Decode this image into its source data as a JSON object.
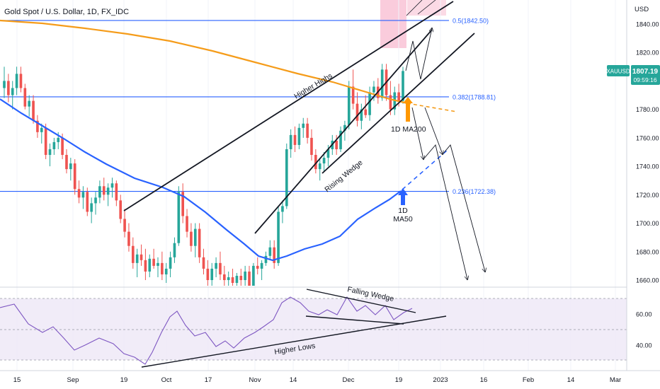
{
  "header": {
    "title": "Gold Spot / U.S. Dollar, 1D, FX_IDC"
  },
  "price_axis": {
    "unit": "USD",
    "ticks": [
      "1840.00",
      "1820.00",
      "1800.00",
      "1780.00",
      "1760.00",
      "1740.00",
      "1720.00",
      "1700.00",
      "1680.00",
      "1660.00"
    ]
  },
  "rsi_axis": {
    "ticks": [
      "60.00",
      "40.00"
    ]
  },
  "time_axis": {
    "ticks": [
      "15",
      "Sep",
      "19",
      "Oct",
      "17",
      "Nov",
      "14",
      "Dec",
      "19",
      "2023",
      "16",
      "Feb",
      "14",
      "Mar"
    ]
  },
  "price_badge": {
    "symbol": "XAUUSD",
    "price": "1807.19",
    "countdown": "09:59:16"
  },
  "fib_levels": [
    {
      "label": "0.5(1842.50)",
      "value": 1842.5
    },
    {
      "label": "0.382(1788.81)",
      "value": 1788.81
    },
    {
      "label": "0.236(1722.38)",
      "value": 1722.38
    }
  ],
  "annotations": {
    "higher_highs": "Higher Highs",
    "rising_wedge": "Rising Wedge",
    "ma200_line1": "1D MA200",
    "ma50_line1": "1D",
    "ma50_line2": "MA50",
    "falling_wedge": "Falling Wedge",
    "higher_lows": "Higher Lows"
  },
  "colors": {
    "up": "#26a69a",
    "down": "#ef5350",
    "ma200": "#f59c1a",
    "ma50": "#2962ff",
    "fib": "#2962ff",
    "rsi": "#7e57c2",
    "badge": "#26a69a",
    "ma200_arrow": "#ff9800",
    "ma50_arrow": "#2962ff"
  },
  "chart_data": {
    "type": "candlestick",
    "candles_ohlc_approx": [
      [
        1795,
        1810,
        1788,
        1800
      ],
      [
        1800,
        1805,
        1785,
        1790
      ],
      [
        1790,
        1800,
        1780,
        1795
      ],
      [
        1795,
        1810,
        1790,
        1805
      ],
      [
        1805,
        1810,
        1792,
        1795
      ],
      [
        1795,
        1798,
        1780,
        1782
      ],
      [
        1782,
        1790,
        1775,
        1786
      ],
      [
        1786,
        1790,
        1770,
        1772
      ],
      [
        1772,
        1776,
        1760,
        1764
      ],
      [
        1764,
        1770,
        1756,
        1767
      ],
      [
        1767,
        1770,
        1745,
        1748
      ],
      [
        1748,
        1756,
        1740,
        1752
      ],
      [
        1752,
        1760,
        1748,
        1757
      ],
      [
        1757,
        1764,
        1752,
        1760
      ],
      [
        1760,
        1763,
        1745,
        1748
      ],
      [
        1748,
        1752,
        1735,
        1738
      ],
      [
        1738,
        1746,
        1730,
        1742
      ],
      [
        1742,
        1745,
        1720,
        1724
      ],
      [
        1724,
        1730,
        1714,
        1718
      ],
      [
        1718,
        1726,
        1710,
        1722
      ],
      [
        1722,
        1725,
        1705,
        1708
      ],
      [
        1708,
        1718,
        1700,
        1714
      ],
      [
        1714,
        1722,
        1706,
        1718
      ],
      [
        1718,
        1730,
        1714,
        1726
      ],
      [
        1726,
        1732,
        1716,
        1720
      ],
      [
        1720,
        1728,
        1712,
        1725
      ],
      [
        1725,
        1732,
        1718,
        1728
      ],
      [
        1728,
        1730,
        1712,
        1716
      ],
      [
        1716,
        1720,
        1700,
        1703
      ],
      [
        1703,
        1710,
        1690,
        1694
      ],
      [
        1694,
        1700,
        1680,
        1684
      ],
      [
        1684,
        1690,
        1668,
        1672
      ],
      [
        1672,
        1682,
        1662,
        1678
      ],
      [
        1678,
        1685,
        1670,
        1674
      ],
      [
        1674,
        1682,
        1660,
        1666
      ],
      [
        1666,
        1678,
        1662,
        1675
      ],
      [
        1675,
        1682,
        1668,
        1670
      ],
      [
        1670,
        1676,
        1662,
        1672
      ],
      [
        1672,
        1680,
        1660,
        1664
      ],
      [
        1664,
        1672,
        1658,
        1668
      ],
      [
        1668,
        1680,
        1662,
        1676
      ],
      [
        1676,
        1690,
        1672,
        1686
      ],
      [
        1686,
        1726,
        1684,
        1722
      ],
      [
        1722,
        1728,
        1700,
        1705
      ],
      [
        1705,
        1710,
        1690,
        1694
      ],
      [
        1694,
        1700,
        1680,
        1684
      ],
      [
        1684,
        1700,
        1676,
        1696
      ],
      [
        1696,
        1700,
        1672,
        1676
      ],
      [
        1676,
        1682,
        1664,
        1668
      ],
      [
        1668,
        1674,
        1656,
        1660
      ],
      [
        1660,
        1672,
        1656,
        1668
      ],
      [
        1668,
        1676,
        1662,
        1672
      ],
      [
        1672,
        1680,
        1660,
        1664
      ],
      [
        1664,
        1670,
        1656,
        1660
      ],
      [
        1660,
        1666,
        1654,
        1662
      ],
      [
        1662,
        1668,
        1655,
        1658
      ],
      [
        1658,
        1665,
        1652,
        1663
      ],
      [
        1663,
        1668,
        1656,
        1660
      ],
      [
        1660,
        1670,
        1656,
        1666
      ],
      [
        1666,
        1670,
        1650,
        1655
      ],
      [
        1655,
        1672,
        1652,
        1670
      ],
      [
        1670,
        1676,
        1664,
        1668
      ],
      [
        1668,
        1674,
        1660,
        1672
      ],
      [
        1672,
        1680,
        1670,
        1677
      ],
      [
        1677,
        1688,
        1674,
        1683
      ],
      [
        1683,
        1688,
        1668,
        1672
      ],
      [
        1672,
        1712,
        1670,
        1708
      ],
      [
        1708,
        1716,
        1700,
        1712
      ],
      [
        1712,
        1756,
        1710,
        1752
      ],
      [
        1752,
        1766,
        1746,
        1762
      ],
      [
        1762,
        1768,
        1750,
        1755
      ],
      [
        1755,
        1770,
        1752,
        1767
      ],
      [
        1767,
        1774,
        1760,
        1770
      ],
      [
        1770,
        1774,
        1756,
        1760
      ],
      [
        1760,
        1766,
        1744,
        1748
      ],
      [
        1748,
        1752,
        1735,
        1738
      ],
      [
        1738,
        1745,
        1730,
        1742
      ],
      [
        1742,
        1750,
        1736,
        1746
      ],
      [
        1746,
        1755,
        1740,
        1752
      ],
      [
        1752,
        1762,
        1748,
        1758
      ],
      [
        1758,
        1762,
        1748,
        1752
      ],
      [
        1752,
        1768,
        1750,
        1765
      ],
      [
        1765,
        1772,
        1758,
        1769
      ],
      [
        1769,
        1800,
        1766,
        1796
      ],
      [
        1796,
        1808,
        1780,
        1784
      ],
      [
        1784,
        1792,
        1768,
        1772
      ],
      [
        1772,
        1784,
        1766,
        1780
      ],
      [
        1780,
        1790,
        1774,
        1776
      ],
      [
        1776,
        1796,
        1772,
        1792
      ],
      [
        1792,
        1800,
        1786,
        1796
      ],
      [
        1796,
        1802,
        1784,
        1788
      ],
      [
        1788,
        1812,
        1786,
        1808
      ],
      [
        1808,
        1812,
        1786,
        1790
      ],
      [
        1790,
        1800,
        1776,
        1780
      ],
      [
        1780,
        1796,
        1776,
        1792
      ],
      [
        1792,
        1798,
        1782,
        1786
      ],
      [
        1786,
        1810,
        1784,
        1807
      ]
    ],
    "moving_averages": [
      {
        "name": "1D MA200",
        "period": 200
      },
      {
        "name": "MA50",
        "period": 50
      }
    ],
    "y_range": [
      1650,
      1860
    ],
    "rsi_range": [
      28,
      76
    ]
  }
}
